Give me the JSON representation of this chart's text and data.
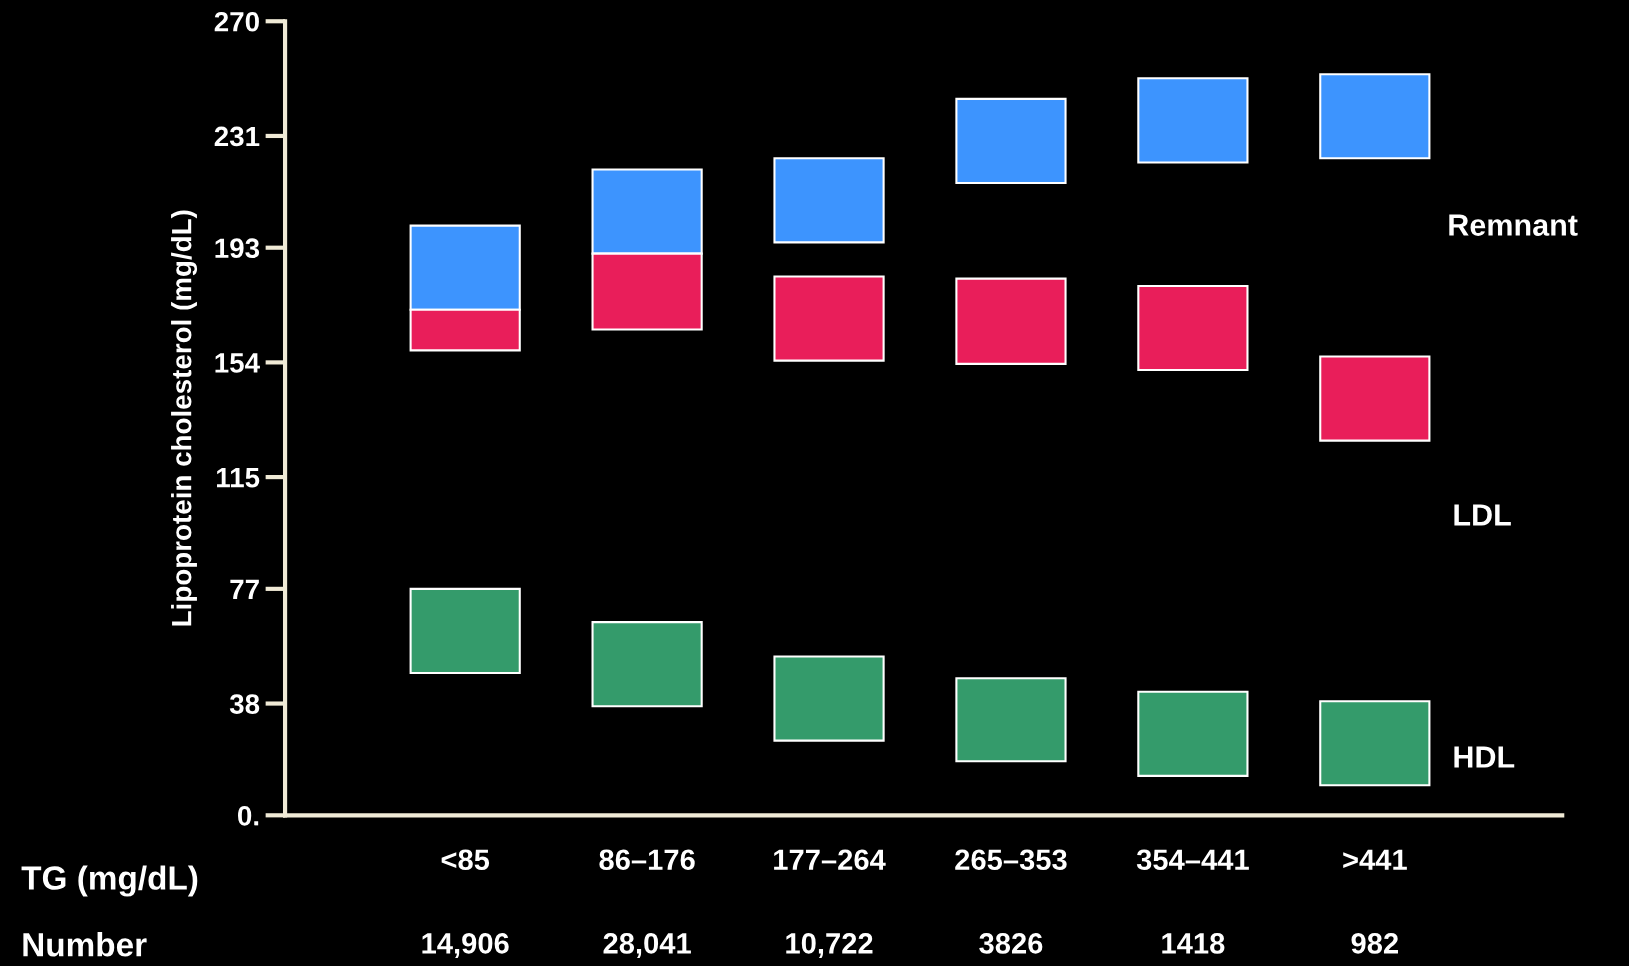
{
  "chart_data": {
    "type": "bar",
    "ylabel": "Lipoprotein cholesterol (mg/dL)",
    "xlabel": "TG (mg/dL)",
    "categories": [
      "<85",
      "86–176",
      "177–264",
      "265–353",
      "354–441",
      ">441"
    ],
    "series": [
      {
        "name": "Remnant",
        "color": "#3d94fe",
        "base": [
          171.9,
          191.0,
          194.8,
          215.0,
          222.0,
          223.4
        ],
        "values": [
          28.6,
          28.6,
          28.6,
          28.6,
          28.6,
          28.6
        ]
      },
      {
        "name": "LDL",
        "color": "#e91e5a",
        "base": [
          158.1,
          165.2,
          154.6,
          153.5,
          151.4,
          127.4
        ],
        "values": [
          13.8,
          25.8,
          28.6,
          29.0,
          28.6,
          28.6
        ]
      },
      {
        "name": "HDL",
        "color": "#349b6b",
        "base": [
          48.4,
          37.1,
          25.4,
          18.4,
          13.4,
          10.2
        ],
        "values": [
          28.6,
          28.6,
          28.6,
          28.2,
          28.6,
          28.6
        ]
      }
    ],
    "ylim": [
      0,
      270
    ],
    "yticks": [
      {
        "value": 0,
        "label": "0."
      },
      38,
      77,
      115,
      154,
      193,
      231,
      270
    ],
    "annotations": [
      "Number",
      "14,906",
      "28,041",
      "10,722",
      "3826",
      "1418",
      "982"
    ],
    "legend": false,
    "grid": false
  }
}
